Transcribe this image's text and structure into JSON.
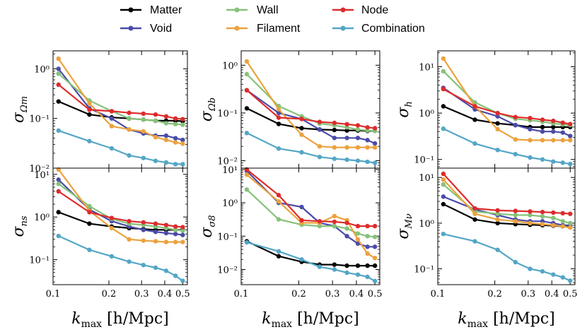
{
  "chart_data": {
    "type": "line",
    "x_scale": "log",
    "y_scale": "log",
    "x": [
      0.107,
      0.157,
      0.207,
      0.257,
      0.307,
      0.357,
      0.407,
      0.457,
      0.5
    ],
    "xlim": [
      0.1,
      0.53
    ],
    "x_ticks": [
      0.1,
      0.2,
      0.3,
      0.4,
      0.5
    ],
    "x_tick_labels": [
      "0.1",
      "0.2",
      "0.3",
      "0.4",
      "0.5"
    ],
    "xlabel": {
      "main": "k",
      "sub": "max",
      "rest": " [h/Mpc]"
    },
    "legend": {
      "position": "top-center",
      "entries": [
        {
          "name": "Matter",
          "color": "#000000"
        },
        {
          "name": "Void",
          "color": "#4b4ba8"
        },
        {
          "name": "Wall",
          "color": "#86c27a"
        },
        {
          "name": "Filament",
          "color": "#eba23e"
        },
        {
          "name": "Node",
          "color": "#dd2c2c"
        },
        {
          "name": "Combination",
          "color": "#53a6c6"
        }
      ]
    },
    "panels": [
      {
        "ylabel": "σ",
        "ysub": "Ωm",
        "ylim": [
          0.01,
          2.3
        ],
        "y_ticks": [
          0.01,
          0.1,
          1
        ],
        "y_tick_labels": [
          "10⁻²",
          "10⁻¹",
          "10⁰"
        ],
        "series": [
          {
            "name": "Matter",
            "values": [
              0.22,
              0.12,
              0.105,
              0.1,
              0.095,
              0.09,
              0.09,
              0.09,
              0.088
            ]
          },
          {
            "name": "Void",
            "values": [
              1.0,
              0.16,
              0.1,
              0.06,
              0.05,
              0.045,
              0.045,
              0.04,
              0.037
            ]
          },
          {
            "name": "Wall",
            "values": [
              0.8,
              0.23,
              0.14,
              0.1,
              0.095,
              0.09,
              0.08,
              0.077,
              0.075
            ]
          },
          {
            "name": "Filament",
            "values": [
              1.6,
              0.2,
              0.07,
              0.06,
              0.055,
              0.042,
              0.037,
              0.033,
              0.031
            ]
          },
          {
            "name": "Node",
            "values": [
              0.48,
              0.15,
              0.14,
              0.13,
              0.125,
              0.12,
              0.11,
              0.1,
              0.097
            ]
          },
          {
            "name": "Combination",
            "values": [
              0.057,
              0.035,
              0.025,
              0.018,
              0.016,
              0.014,
              0.013,
              0.012,
              0.012
            ]
          }
        ]
      },
      {
        "ylabel": "σ",
        "ysub": "Ωb",
        "ylim": [
          0.007,
          2.0
        ],
        "y_ticks": [
          0.01,
          0.1,
          1
        ],
        "y_tick_labels": [
          "10⁻²",
          "10⁻¹",
          "10⁰"
        ],
        "series": [
          {
            "name": "Matter",
            "values": [
              0.125,
              0.059,
              0.048,
              0.045,
              0.044,
              0.043,
              0.043,
              0.042,
              0.042
            ]
          },
          {
            "name": "Void",
            "values": [
              0.3,
              0.1,
              0.075,
              0.045,
              0.03,
              0.03,
              0.03,
              0.027,
              0.023
            ]
          },
          {
            "name": "Wall",
            "values": [
              0.65,
              0.14,
              0.085,
              0.06,
              0.055,
              0.05,
              0.045,
              0.043,
              0.042
            ]
          },
          {
            "name": "Filament",
            "values": [
              1.2,
              0.12,
              0.035,
              0.02,
              0.019,
              0.019,
              0.019,
              0.019,
              0.019
            ]
          },
          {
            "name": "Node",
            "values": [
              0.3,
              0.08,
              0.075,
              0.065,
              0.062,
              0.058,
              0.055,
              0.05,
              0.048
            ]
          },
          {
            "name": "Combination",
            "values": [
              0.038,
              0.018,
              0.015,
              0.012,
              0.011,
              0.0105,
              0.01,
              0.0095,
              0.009
            ]
          }
        ]
      },
      {
        "ylabel": "σ",
        "ysub": "h",
        "ylim": [
          0.065,
          22
        ],
        "y_ticks": [
          0.1,
          1,
          10
        ],
        "y_tick_labels": [
          "10⁻¹",
          "10⁰",
          "10¹"
        ],
        "series": [
          {
            "name": "Matter",
            "values": [
              1.4,
              0.72,
              0.6,
              0.55,
              0.5,
              0.5,
              0.5,
              0.5,
              0.5
            ]
          },
          {
            "name": "Void",
            "values": [
              3.5,
              1.2,
              0.85,
              0.55,
              0.45,
              0.4,
              0.4,
              0.38,
              0.32
            ]
          },
          {
            "name": "Wall",
            "values": [
              8.0,
              1.7,
              1.0,
              0.75,
              0.7,
              0.65,
              0.6,
              0.57,
              0.55
            ]
          },
          {
            "name": "Filament",
            "values": [
              15.0,
              1.4,
              0.45,
              0.27,
              0.26,
              0.26,
              0.26,
              0.26,
              0.26
            ]
          },
          {
            "name": "Node",
            "values": [
              3.3,
              1.4,
              1.0,
              0.82,
              0.78,
              0.72,
              0.68,
              0.62,
              0.58
            ]
          },
          {
            "name": "Combination",
            "values": [
              0.46,
              0.22,
              0.16,
              0.13,
              0.11,
              0.1,
              0.09,
              0.085,
              0.08
            ]
          }
        ]
      },
      {
        "ylabel": "σ",
        "ysub": "ns",
        "ylim": [
          0.026,
          14
        ],
        "y_ticks": [
          0.1,
          1,
          10
        ],
        "y_tick_labels": [
          "10⁻¹",
          "10⁰",
          "10¹"
        ],
        "series": [
          {
            "name": "Matter",
            "values": [
              1.3,
              0.7,
              0.6,
              0.55,
              0.52,
              0.5,
              0.5,
              0.5,
              0.5
            ]
          },
          {
            "name": "Void",
            "values": [
              7.5,
              1.5,
              0.8,
              0.6,
              0.5,
              0.45,
              0.42,
              0.4,
              0.38
            ]
          },
          {
            "name": "Wall",
            "values": [
              6.0,
              1.8,
              0.9,
              0.7,
              0.65,
              0.6,
              0.55,
              0.5,
              0.48
            ]
          },
          {
            "name": "Filament",
            "values": [
              13.0,
              1.4,
              0.55,
              0.3,
              0.28,
              0.27,
              0.26,
              0.26,
              0.26
            ]
          },
          {
            "name": "Node",
            "values": [
              4.0,
              1.3,
              0.95,
              0.8,
              0.75,
              0.7,
              0.65,
              0.6,
              0.58
            ]
          },
          {
            "name": "Combination",
            "values": [
              0.36,
              0.17,
              0.12,
              0.09,
              0.075,
              0.065,
              0.055,
              0.042,
              0.032
            ]
          }
        ]
      },
      {
        "ylabel": "σ",
        "ysub": "σ8",
        "ylim": [
          0.0035,
          11
        ],
        "y_ticks": [
          0.01,
          0.1,
          1,
          10
        ],
        "y_tick_labels": [
          "10⁻²",
          "10⁻¹",
          "10⁰",
          "10¹"
        ],
        "series": [
          {
            "name": "Matter",
            "values": [
              0.07,
              0.025,
              0.017,
              0.014,
              0.014,
              0.013,
              0.013,
              0.013,
              0.013
            ]
          },
          {
            "name": "Void",
            "values": [
              9.0,
              1.0,
              0.75,
              0.25,
              0.2,
              0.1,
              0.06,
              0.048,
              0.048
            ]
          },
          {
            "name": "Wall",
            "values": [
              2.5,
              0.32,
              0.22,
              0.2,
              0.2,
              0.17,
              0.12,
              0.1,
              0.095
            ]
          },
          {
            "name": "Filament",
            "values": [
              7.0,
              1.1,
              0.25,
              0.25,
              0.4,
              0.3,
              0.08,
              0.03,
              0.022
            ]
          },
          {
            "name": "Node",
            "values": [
              10.0,
              1.7,
              0.3,
              0.28,
              0.27,
              0.25,
              0.2,
              0.2,
              0.2
            ]
          },
          {
            "name": "Combination",
            "values": [
              0.065,
              0.035,
              0.02,
              0.012,
              0.01,
              0.008,
              0.007,
              0.006,
              0.0045
            ]
          }
        ]
      },
      {
        "ylabel": "σ",
        "ysub": "Mν",
        "ylim": [
          0.045,
          16
        ],
        "y_ticks": [
          0.1,
          1,
          10
        ],
        "y_tick_labels": [
          "10⁻¹",
          "10⁰",
          "10¹"
        ],
        "series": [
          {
            "name": "Matter",
            "values": [
              2.6,
              1.2,
              1.0,
              0.95,
              0.92,
              0.9,
              0.88,
              0.85,
              0.85
            ]
          },
          {
            "name": "Void",
            "values": [
              3.8,
              2.0,
              1.5,
              1.2,
              1.1,
              1.1,
              1.0,
              0.9,
              0.9
            ]
          },
          {
            "name": "Wall",
            "values": [
              7.0,
              1.8,
              1.6,
              1.5,
              1.5,
              1.4,
              1.3,
              1.1,
              1.0
            ]
          },
          {
            "name": "Filament",
            "values": [
              9.0,
              1.6,
              1.2,
              1.1,
              1.0,
              0.95,
              0.9,
              0.85,
              0.8
            ]
          },
          {
            "name": "Node",
            "values": [
              12.0,
              2.1,
              1.9,
              1.85,
              1.8,
              1.75,
              1.7,
              1.65,
              1.6
            ]
          },
          {
            "name": "Combination",
            "values": [
              0.58,
              0.4,
              0.26,
              0.14,
              0.1,
              0.088,
              0.075,
              0.065,
              0.055
            ]
          }
        ]
      }
    ]
  }
}
